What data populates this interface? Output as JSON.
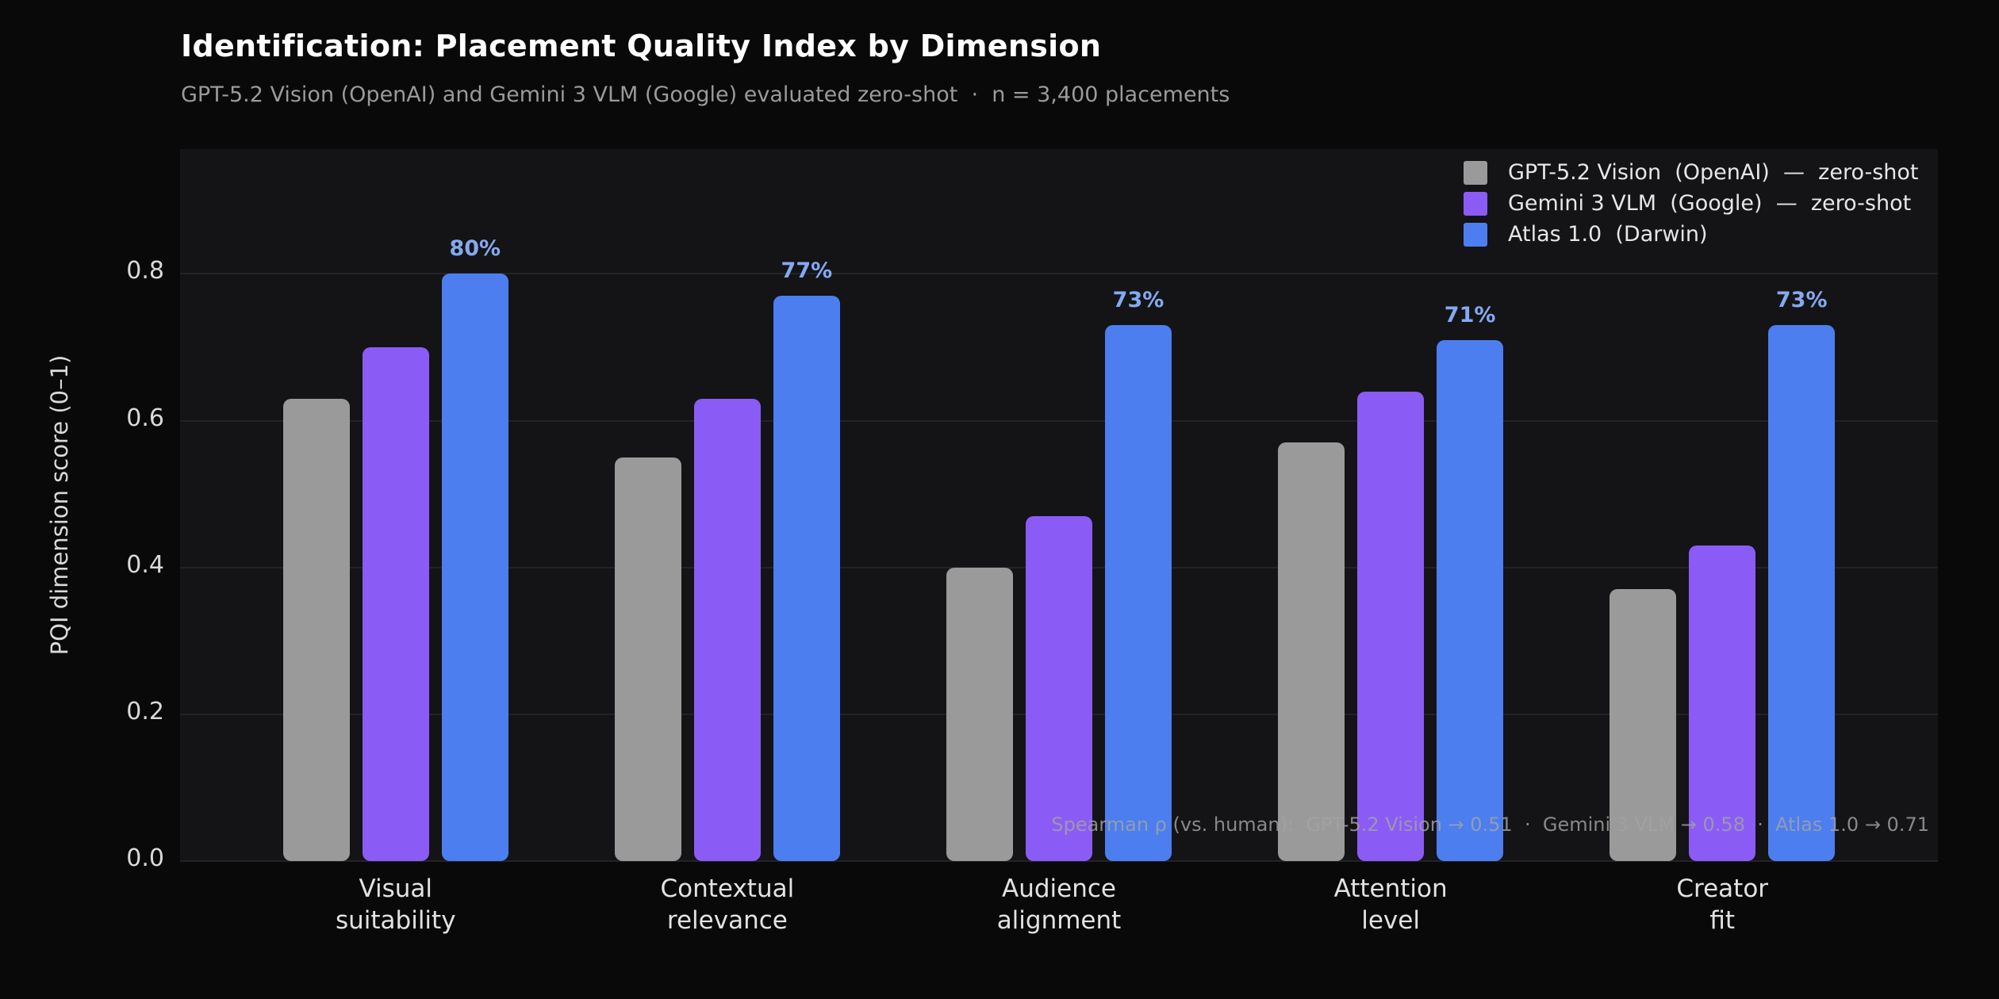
{
  "header": {
    "title": "Identification: Placement Quality Index by Dimension",
    "subtitle": "GPT-5.2 Vision (OpenAI) and Gemini 3 VLM (Google) evaluated zero-shot  ·  n = 3,400 placements"
  },
  "chart_data": {
    "type": "bar",
    "title": "Identification: Placement Quality Index by Dimension",
    "subtitle": "GPT-5.2 Vision (OpenAI) and Gemini 3 VLM (Google) evaluated zero-shot  ·  n = 3,400 placements",
    "ylabel": "PQI dimension score (0–1)",
    "ylim": [
      0,
      0.97
    ],
    "yticks": [
      0.0,
      0.2,
      0.4,
      0.6,
      0.8
    ],
    "grid": true,
    "legend_position": "top-right-inside",
    "categories": [
      "Visual\nsuitability",
      "Contextual\nrelevance",
      "Audience\nalignment",
      "Attention\nlevel",
      "Creator\nfit"
    ],
    "series": [
      {
        "name": "GPT-5.2 Vision  (OpenAI)  —  zero-shot",
        "color": "#9a9a9a",
        "values": [
          0.63,
          0.55,
          0.4,
          0.57,
          0.37
        ]
      },
      {
        "name": "Gemini 3 VLM  (Google)  —  zero-shot",
        "color": "#8a5cf5",
        "values": [
          0.7,
          0.63,
          0.47,
          0.64,
          0.43
        ]
      },
      {
        "name": "Atlas 1.0  (Darwin)",
        "color": "#4c7ef0",
        "values": [
          0.8,
          0.77,
          0.73,
          0.71,
          0.73
        ],
        "labels": [
          "80%",
          "77%",
          "73%",
          "71%",
          "73%"
        ],
        "label_color": "#84a9f1"
      }
    ],
    "annotation": "Spearman ρ (vs. human):  GPT-5.2 Vision → 0.51  ·  Gemini 3 VLM → 0.58  ·  Atlas 1.0 → 0.71"
  }
}
